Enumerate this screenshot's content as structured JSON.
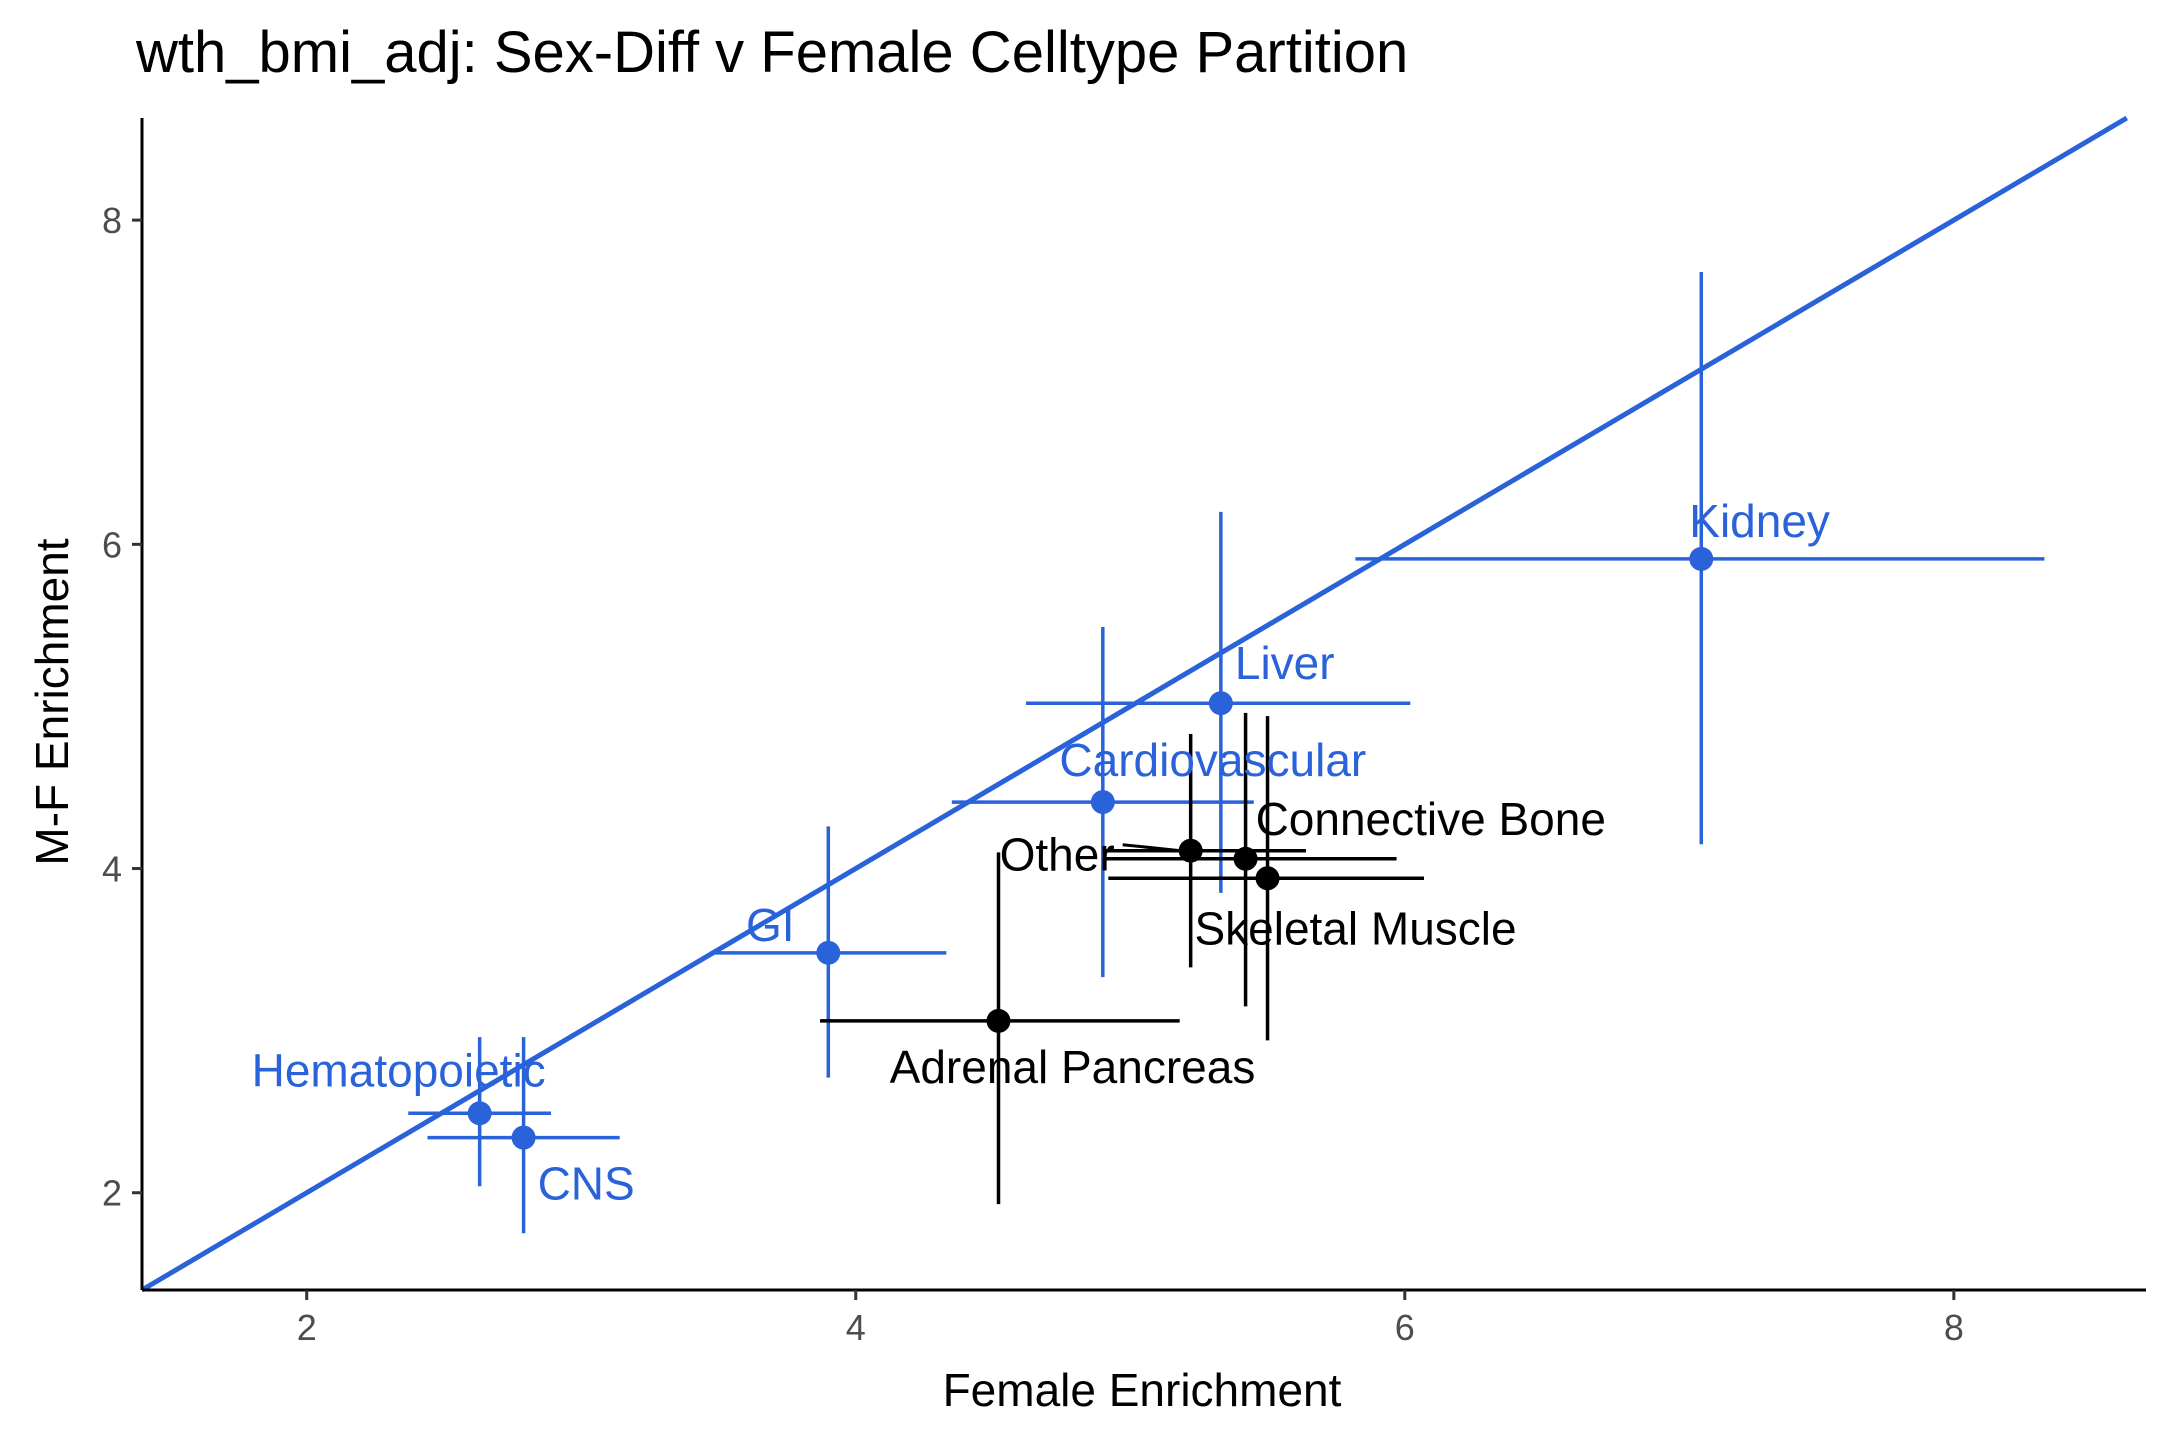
{
  "chart_data": {
    "type": "scatter",
    "title": "wth_bmi_adj: Sex-Diff v Female Celltype Partition",
    "xlabel": "Female Enrichment",
    "ylabel": "M-F Enrichment",
    "xlim": [
      1.4,
      8.7
    ],
    "ylim": [
      1.4,
      8.63
    ],
    "xticks": [
      2,
      4,
      6,
      8
    ],
    "yticks": [
      2,
      4,
      6,
      8
    ],
    "grid": false,
    "legend": "none",
    "colors": {
      "highlight": "#2962d9",
      "other": "#000000",
      "identity_line": "#2962d9"
    },
    "reference_line": {
      "type": "identity",
      "slope": 1,
      "intercept": 0
    },
    "points": [
      {
        "label": "Kidney",
        "x": 7.08,
        "y": 5.91,
        "x_low": 5.82,
        "x_high": 8.33,
        "y_low": 4.15,
        "y_high": 7.68,
        "highlight": true
      },
      {
        "label": "Liver",
        "x": 5.33,
        "y": 5.02,
        "x_low": 4.62,
        "x_high": 6.02,
        "y_low": 3.85,
        "y_high": 6.2,
        "highlight": true
      },
      {
        "label": "Cardiovascular",
        "x": 4.9,
        "y": 4.41,
        "x_low": 4.35,
        "x_high": 5.45,
        "y_low": 3.33,
        "y_high": 5.49,
        "highlight": true
      },
      {
        "label": "GI",
        "x": 3.9,
        "y": 3.48,
        "x_low": 3.47,
        "x_high": 4.33,
        "y_low": 2.71,
        "y_high": 4.26,
        "highlight": true
      },
      {
        "label": "Hematopoietic",
        "x": 2.63,
        "y": 2.49,
        "x_low": 2.37,
        "x_high": 2.89,
        "y_low": 2.04,
        "y_high": 2.96,
        "highlight": true
      },
      {
        "label": "CNS",
        "x": 2.79,
        "y": 2.34,
        "x_low": 2.44,
        "x_high": 3.14,
        "y_low": 1.75,
        "y_high": 2.96,
        "highlight": true
      },
      {
        "label": "Connective Bone",
        "x": 5.42,
        "y": 4.06,
        "x_low": 4.9,
        "x_high": 5.97,
        "y_low": 3.15,
        "y_high": 4.96,
        "highlight": false
      },
      {
        "label": "Other",
        "x": 5.22,
        "y": 4.11,
        "x_low": 4.91,
        "x_high": 5.64,
        "y_low": 3.39,
        "y_high": 4.83,
        "highlight": false
      },
      {
        "label": "Skeletal Muscle",
        "x": 5.5,
        "y": 3.94,
        "x_low": 4.92,
        "x_high": 6.07,
        "y_low": 2.94,
        "y_high": 4.94,
        "highlight": false
      },
      {
        "label": "Adrenal Pancreas",
        "x": 4.52,
        "y": 3.06,
        "x_low": 3.87,
        "x_high": 5.18,
        "y_low": 1.93,
        "y_high": 4.1,
        "highlight": false
      }
    ]
  }
}
